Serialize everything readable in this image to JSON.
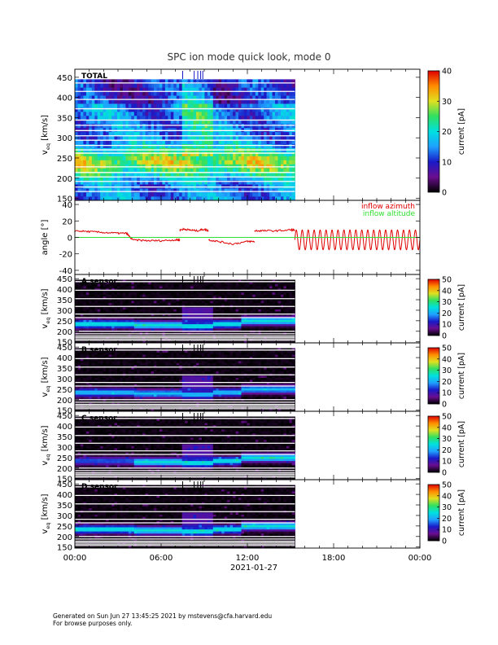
{
  "figure": {
    "title": "SPC ion mode quick look, mode 0",
    "date_label": "2021-01-27",
    "x_tick_labels": [
      "00:00",
      "06:00",
      "12:00",
      "18:00",
      "00:00"
    ],
    "data_coverage_hours": [
      0,
      15.3
    ]
  },
  "footer": {
    "line1": "Generated on Sun Jun 27 13:45:25 2021 by mstevens@cfa.harvard.edu",
    "line2": "For browse purposes only."
  },
  "colors": {
    "spectrogram_colormap": [
      "#000000",
      "#6a0d8f",
      "#1a1ac8",
      "#1fa0ff",
      "#00e0e0",
      "#30e060",
      "#e0e020",
      "#ff8c00",
      "#e00000"
    ],
    "azimuth": "#e00000",
    "altitude": "#30e030"
  },
  "chart_data": [
    {
      "type": "heatmap",
      "panel_label": "TOTAL",
      "ylabel": "v",
      "ylabel_sub": "eq",
      "ylabel_unit": "[km/s]",
      "ylim": [
        145,
        470
      ],
      "y_ticks": [
        150,
        200,
        250,
        300,
        350,
        400,
        450
      ],
      "x_range_hours": [
        0,
        24
      ],
      "colorbar": {
        "label": "current [pA]",
        "range": [
          0,
          40
        ],
        "ticks": [
          0,
          10,
          20,
          30,
          40
        ]
      },
      "event_markers_hours": [
        7.5,
        8.3,
        8.55,
        8.75,
        8.9
      ]
    },
    {
      "type": "line",
      "ylabel": "angle [°]",
      "ylim": [
        -45,
        45
      ],
      "y_ticks": [
        -40,
        -20,
        0,
        20,
        40
      ],
      "x_range_hours": [
        0,
        24
      ],
      "series": [
        {
          "name": "inflow azimuth",
          "color": "#e00000",
          "segments": [
            {
              "x": [
                0,
                1,
                2,
                3,
                3.6,
                4,
                5,
                6,
                7,
                7.3
              ],
              "y": [
                8,
                7,
                6,
                5,
                5,
                -3,
                -4,
                -4,
                -3,
                -3
              ]
            },
            {
              "x": [
                7.3,
                7.6,
                8,
                8.5,
                9,
                9.3
              ],
              "y": [
                9,
                10,
                9,
                8,
                10,
                8
              ]
            },
            {
              "x": [
                9.3,
                10,
                11,
                12,
                12.5
              ],
              "y": [
                -3,
                -5,
                -8,
                -5,
                -5
              ]
            },
            {
              "x": [
                12.5,
                13,
                14,
                15,
                15.3
              ],
              "y": [
                8,
                8,
                8,
                9,
                9
              ]
            }
          ],
          "oscillation": {
            "x_start": 15.3,
            "x_end": 24,
            "amplitude": 12,
            "center": -3,
            "cycles": 21
          }
        },
        {
          "name": "inflow altitude",
          "color": "#30e030",
          "segments": [
            {
              "x": [
                0,
                24
              ],
              "y": [
                0,
                0
              ]
            }
          ]
        }
      ]
    },
    {
      "type": "heatmap",
      "panel_label": "A sensor",
      "ylabel": "v",
      "ylabel_sub": "eq",
      "ylabel_unit": "[km/s]",
      "ylim": [
        145,
        470
      ],
      "y_ticks": [
        150,
        200,
        250,
        300,
        350,
        400,
        450
      ],
      "colorbar": {
        "label": "current [pA]",
        "range": [
          0,
          50
        ],
        "ticks": [
          0,
          10,
          20,
          30,
          40,
          50
        ]
      },
      "event_markers_hours": [
        7.5,
        8.3,
        8.55,
        8.75,
        8.9
      ]
    },
    {
      "type": "heatmap",
      "panel_label": "B sensor",
      "ylabel": "v",
      "ylabel_sub": "eq",
      "ylabel_unit": "[km/s]",
      "ylim": [
        145,
        470
      ],
      "y_ticks": [
        150,
        200,
        250,
        300,
        350,
        400,
        450
      ],
      "colorbar": {
        "label": "current [pA]",
        "range": [
          0,
          50
        ],
        "ticks": [
          0,
          10,
          20,
          30,
          40,
          50
        ]
      },
      "event_markers_hours": [
        7.5,
        8.3,
        8.55,
        8.75,
        8.9
      ]
    },
    {
      "type": "heatmap",
      "panel_label": "C sensor",
      "ylabel": "v",
      "ylabel_sub": "eq",
      "ylabel_unit": "[km/s]",
      "ylim": [
        145,
        470
      ],
      "y_ticks": [
        150,
        200,
        250,
        300,
        350,
        400,
        450
      ],
      "colorbar": {
        "label": "current [pA]",
        "range": [
          0,
          50
        ],
        "ticks": [
          0,
          10,
          20,
          30,
          40,
          50
        ]
      },
      "event_markers_hours": [
        7.5,
        8.3,
        8.55,
        8.75,
        8.9
      ]
    },
    {
      "type": "heatmap",
      "panel_label": "D sensor",
      "ylabel": "v",
      "ylabel_sub": "eq",
      "ylabel_unit": "[km/s]",
      "ylim": [
        145,
        470
      ],
      "y_ticks": [
        150,
        200,
        250,
        300,
        350,
        400,
        450
      ],
      "colorbar": {
        "label": "current [pA]",
        "range": [
          0,
          50
        ],
        "ticks": [
          0,
          10,
          20,
          30,
          40,
          50
        ]
      },
      "event_markers_hours": [
        7.5,
        8.3,
        8.55,
        8.75,
        8.9
      ]
    }
  ]
}
